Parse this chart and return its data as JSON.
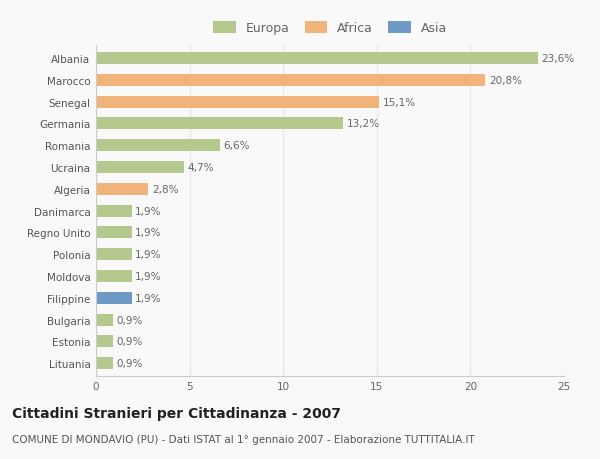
{
  "countries": [
    "Albania",
    "Marocco",
    "Senegal",
    "Germania",
    "Romania",
    "Ucraina",
    "Algeria",
    "Danimarca",
    "Regno Unito",
    "Polonia",
    "Moldova",
    "Filippine",
    "Bulgaria",
    "Estonia",
    "Lituania"
  ],
  "values": [
    23.6,
    20.8,
    15.1,
    13.2,
    6.6,
    4.7,
    2.8,
    1.9,
    1.9,
    1.9,
    1.9,
    1.9,
    0.9,
    0.9,
    0.9
  ],
  "labels": [
    "23,6%",
    "20,8%",
    "15,1%",
    "13,2%",
    "6,6%",
    "4,7%",
    "2,8%",
    "1,9%",
    "1,9%",
    "1,9%",
    "1,9%",
    "1,9%",
    "0,9%",
    "0,9%",
    "0,9%"
  ],
  "colors": [
    "#b5c98e",
    "#f0b47a",
    "#f0b47a",
    "#b5c98e",
    "#b5c98e",
    "#b5c98e",
    "#f0b47a",
    "#b5c98e",
    "#b5c98e",
    "#b5c98e",
    "#b5c98e",
    "#6e99c4",
    "#b5c98e",
    "#b5c98e",
    "#b5c98e"
  ],
  "legend_labels": [
    "Europa",
    "Africa",
    "Asia"
  ],
  "legend_colors": [
    "#b5c98e",
    "#f0b47a",
    "#6e99c4"
  ],
  "title": "Cittadini Stranieri per Cittadinanza - 2007",
  "subtitle": "COMUNE DI MONDAVIO (PU) - Dati ISTAT al 1° gennaio 2007 - Elaborazione TUTTITALIA.IT",
  "xlim": [
    0,
    25
  ],
  "xticks": [
    0,
    5,
    10,
    15,
    20,
    25
  ],
  "background_color": "#f9f9f9",
  "grid_color": "#e8e8e8",
  "bar_height": 0.55,
  "label_fontsize": 7.5,
  "title_fontsize": 10,
  "subtitle_fontsize": 7.5,
  "tick_fontsize": 7.5,
  "legend_fontsize": 9
}
